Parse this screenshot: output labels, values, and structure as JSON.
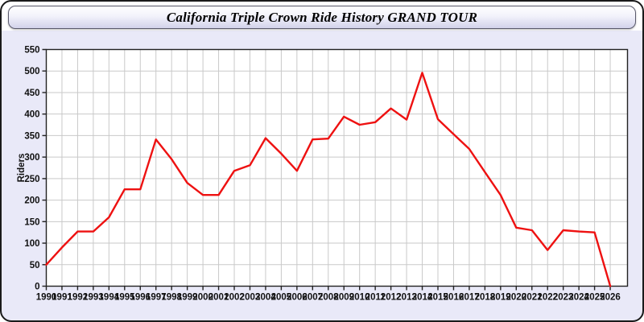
{
  "header": {
    "title": "California Triple Crown Ride History GRAND TOUR"
  },
  "chart_data": {
    "type": "line",
    "title": "California Triple Crown Ride History GRAND TOUR",
    "xlabel": "",
    "ylabel": "Riders",
    "x": [
      1990,
      1991,
      1992,
      1993,
      1994,
      1995,
      1996,
      1997,
      1998,
      1999,
      2000,
      2001,
      2002,
      2003,
      2004,
      2005,
      2006,
      2007,
      2008,
      2009,
      2010,
      2011,
      2012,
      2013,
      2014,
      2015,
      2016,
      2017,
      2018,
      2019,
      2020,
      2021,
      2022,
      2023,
      2024,
      2025,
      2026
    ],
    "series": [
      {
        "name": "Riders",
        "color": "#ee1111",
        "values": [
          50,
          90,
          127,
          127,
          160,
          225,
          225,
          341,
          295,
          240,
          212,
          212,
          268,
          281,
          344,
          308,
          268,
          341,
          343,
          394,
          375,
          381,
          413,
          387,
          496,
          388,
          353,
          319,
          265,
          212,
          136,
          130,
          84,
          130,
          127,
          125,
          0
        ]
      }
    ],
    "ylim": [
      0,
      550
    ],
    "ytick_step": 50,
    "grid": true,
    "legend": "none",
    "grid_color": "#c9c9c9",
    "axis_color": "#222222",
    "plot_bg": "#ffffff",
    "page_bg": "#e9e9f8"
  }
}
